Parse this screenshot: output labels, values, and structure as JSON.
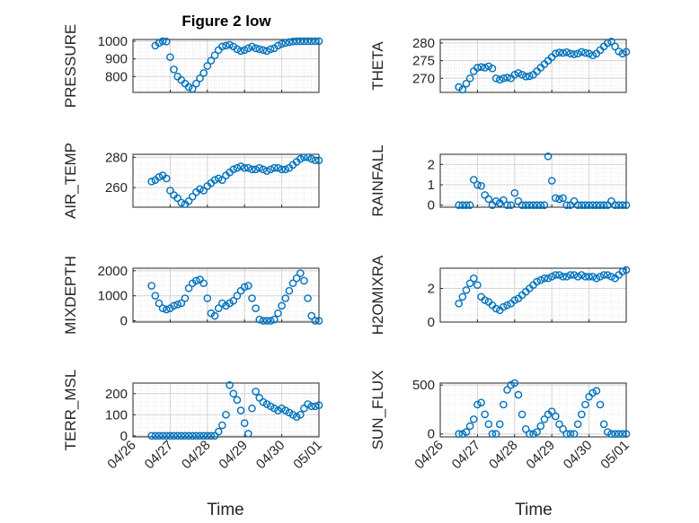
{
  "figure": {
    "title": "Figure 2 low",
    "xlabel": "Time"
  },
  "colors": {
    "marker": "#0072BD",
    "grid": "#DDDDDD",
    "axis": "#262626"
  },
  "chart_data": [
    {
      "type": "scatter",
      "ylabel": "PRESSURE",
      "ylim": [
        710,
        1010
      ],
      "yticks": [
        800,
        900,
        1000
      ],
      "xlim": [
        0,
        5
      ],
      "grid": true,
      "x": [
        0.6,
        0.7,
        0.8,
        0.9,
        1.0,
        1.1,
        1.2,
        1.3,
        1.4,
        1.5,
        1.6,
        1.7,
        1.8,
        1.9,
        2.0,
        2.1,
        2.2,
        2.3,
        2.4,
        2.5,
        2.6,
        2.7,
        2.8,
        2.9,
        3.0,
        3.1,
        3.2,
        3.3,
        3.4,
        3.5,
        3.6,
        3.7,
        3.8,
        3.9,
        4.0,
        4.1,
        4.2,
        4.3,
        4.4,
        4.5,
        4.6,
        4.7,
        4.8,
        4.9,
        5.0
      ],
      "y": [
        975,
        990,
        1000,
        998,
        910,
        840,
        800,
        780,
        760,
        740,
        730,
        760,
        790,
        820,
        860,
        890,
        920,
        950,
        970,
        975,
        980,
        970,
        955,
        945,
        950,
        960,
        970,
        960,
        955,
        950,
        945,
        955,
        960,
        975,
        985,
        990,
        995,
        998,
        1000,
        1000,
        1000,
        1000,
        1000,
        1000,
        1000
      ]
    },
    {
      "type": "scatter",
      "ylabel": "THETA",
      "ylim": [
        266,
        281
      ],
      "yticks": [
        270,
        275,
        280
      ],
      "xlim": [
        0,
        5
      ],
      "grid": true,
      "x": [
        0.5,
        0.6,
        0.7,
        0.8,
        0.9,
        1.0,
        1.1,
        1.2,
        1.3,
        1.4,
        1.5,
        1.6,
        1.7,
        1.8,
        1.9,
        2.0,
        2.1,
        2.2,
        2.3,
        2.4,
        2.5,
        2.6,
        2.7,
        2.8,
        2.9,
        3.0,
        3.1,
        3.2,
        3.3,
        3.4,
        3.5,
        3.6,
        3.7,
        3.8,
        3.9,
        4.0,
        4.1,
        4.2,
        4.3,
        4.4,
        4.5,
        4.6,
        4.7,
        4.8,
        4.9,
        5.0
      ],
      "y": [
        267.5,
        266.8,
        268.5,
        270,
        272,
        273,
        273.2,
        273,
        273.4,
        272.8,
        270,
        269.6,
        270,
        270.2,
        270,
        271,
        271.5,
        271,
        270.5,
        270.6,
        271,
        272,
        273,
        274,
        275,
        276,
        277,
        277.3,
        277.2,
        277.4,
        277,
        276.8,
        277,
        277.5,
        277.2,
        277,
        276.5,
        277,
        278,
        279,
        280,
        280.4,
        279,
        277.6,
        277,
        277.5
      ]
    },
    {
      "type": "scatter",
      "ylabel": "AIR_TEMP",
      "ylim": [
        247,
        282
      ],
      "yticks": [
        260,
        280
      ],
      "xlim": [
        0,
        5
      ],
      "grid": true,
      "x": [
        0.5,
        0.6,
        0.7,
        0.8,
        0.9,
        1.0,
        1.1,
        1.2,
        1.3,
        1.4,
        1.5,
        1.6,
        1.7,
        1.8,
        1.9,
        2.0,
        2.1,
        2.2,
        2.3,
        2.4,
        2.5,
        2.6,
        2.7,
        2.8,
        2.9,
        3.0,
        3.1,
        3.2,
        3.3,
        3.4,
        3.5,
        3.6,
        3.7,
        3.8,
        3.9,
        4.0,
        4.1,
        4.2,
        4.3,
        4.4,
        4.5,
        4.6,
        4.7,
        4.8,
        4.9,
        5.0
      ],
      "y": [
        264,
        265,
        267,
        268,
        266,
        258,
        255,
        253,
        250,
        249,
        251,
        254,
        257,
        259,
        258,
        261,
        263,
        265,
        266,
        265,
        268,
        270,
        272,
        273,
        274,
        273,
        273,
        272,
        272,
        273,
        272,
        271,
        272,
        273,
        273,
        272,
        272,
        273,
        275,
        277,
        279,
        280,
        280,
        279,
        278,
        278
      ]
    },
    {
      "type": "scatter",
      "ylabel": "RAINFALL",
      "ylim": [
        -0.1,
        2.5
      ],
      "yticks": [
        0,
        1,
        2
      ],
      "xlim": [
        0,
        5
      ],
      "grid": true,
      "x": [
        0.5,
        0.6,
        0.7,
        0.8,
        0.9,
        1.0,
        1.1,
        1.2,
        1.3,
        1.4,
        1.5,
        1.6,
        1.7,
        1.8,
        1.9,
        2.0,
        2.1,
        2.2,
        2.3,
        2.4,
        2.5,
        2.6,
        2.7,
        2.8,
        2.9,
        3.0,
        3.1,
        3.2,
        3.3,
        3.4,
        3.5,
        3.6,
        3.7,
        3.8,
        3.9,
        4.0,
        4.1,
        4.2,
        4.3,
        4.4,
        4.5,
        4.6,
        4.7,
        4.8,
        4.9,
        5.0
      ],
      "y": [
        0,
        0,
        0,
        0,
        1.25,
        1.0,
        0.95,
        0.5,
        0.3,
        0,
        0.2,
        0.1,
        0.25,
        0,
        0,
        0.6,
        0.2,
        0,
        0,
        0,
        0,
        0,
        0,
        0,
        2.4,
        1.2,
        0.35,
        0.3,
        0.35,
        0,
        0,
        0.2,
        0,
        0,
        0,
        0,
        0,
        0,
        0,
        0,
        0,
        0.2,
        0,
        0,
        0,
        0
      ]
    },
    {
      "type": "scatter",
      "ylabel": "MIXDEPTH",
      "ylim": [
        -50,
        2100
      ],
      "yticks": [
        0,
        1000,
        2000
      ],
      "xlim": [
        0,
        5
      ],
      "grid": true,
      "x": [
        0.5,
        0.6,
        0.7,
        0.8,
        0.9,
        1.0,
        1.1,
        1.2,
        1.3,
        1.4,
        1.5,
        1.6,
        1.7,
        1.8,
        1.9,
        2.0,
        2.1,
        2.2,
        2.3,
        2.4,
        2.5,
        2.6,
        2.7,
        2.8,
        2.9,
        3.0,
        3.1,
        3.2,
        3.3,
        3.4,
        3.5,
        3.6,
        3.7,
        3.8,
        3.9,
        4.0,
        4.1,
        4.2,
        4.3,
        4.4,
        4.5,
        4.6,
        4.7,
        4.8,
        4.9,
        5.0
      ],
      "y": [
        1400,
        1000,
        700,
        500,
        450,
        500,
        600,
        650,
        700,
        900,
        1300,
        1500,
        1600,
        1650,
        1500,
        900,
        300,
        200,
        500,
        700,
        600,
        700,
        800,
        1000,
        1200,
        1350,
        1400,
        900,
        500,
        50,
        0,
        0,
        0,
        50,
        300,
        600,
        900,
        1200,
        1500,
        1700,
        1900,
        1600,
        900,
        200,
        0,
        0
      ]
    },
    {
      "type": "scatter",
      "ylabel": "H2OMIXRA",
      "ylim": [
        0,
        3.2
      ],
      "yticks": [
        0,
        2
      ],
      "xlim": [
        0,
        5
      ],
      "grid": true,
      "x": [
        0.5,
        0.6,
        0.7,
        0.8,
        0.9,
        1.0,
        1.1,
        1.2,
        1.3,
        1.4,
        1.5,
        1.6,
        1.7,
        1.8,
        1.9,
        2.0,
        2.1,
        2.2,
        2.3,
        2.4,
        2.5,
        2.6,
        2.7,
        2.8,
        2.9,
        3.0,
        3.1,
        3.2,
        3.3,
        3.4,
        3.5,
        3.6,
        3.7,
        3.8,
        3.9,
        4.0,
        4.1,
        4.2,
        4.3,
        4.4,
        4.5,
        4.6,
        4.7,
        4.8,
        4.9,
        5.0
      ],
      "y": [
        1.1,
        1.5,
        1.9,
        2.3,
        2.6,
        2.2,
        1.5,
        1.3,
        1.2,
        1.0,
        0.8,
        0.7,
        0.9,
        1.0,
        1.1,
        1.3,
        1.4,
        1.6,
        1.8,
        2.0,
        2.2,
        2.4,
        2.5,
        2.6,
        2.6,
        2.7,
        2.8,
        2.8,
        2.7,
        2.7,
        2.8,
        2.8,
        2.7,
        2.8,
        2.7,
        2.7,
        2.7,
        2.6,
        2.7,
        2.8,
        2.8,
        2.7,
        2.6,
        2.8,
        3.0,
        3.1
      ]
    },
    {
      "type": "scatter",
      "ylabel": "TERR_MSL",
      "ylim": [
        -5,
        250
      ],
      "yticks": [
        0,
        100,
        200
      ],
      "xlim": [
        0,
        5
      ],
      "grid": true,
      "x": [
        0.5,
        0.6,
        0.7,
        0.8,
        0.9,
        1.0,
        1.1,
        1.2,
        1.3,
        1.4,
        1.5,
        1.6,
        1.7,
        1.8,
        1.9,
        2.0,
        2.1,
        2.2,
        2.3,
        2.4,
        2.5,
        2.6,
        2.7,
        2.8,
        2.9,
        3.0,
        3.1,
        3.2,
        3.3,
        3.4,
        3.5,
        3.6,
        3.7,
        3.8,
        3.9,
        4.0,
        4.1,
        4.2,
        4.3,
        4.4,
        4.5,
        4.6,
        4.7,
        4.8,
        4.9,
        5.0
      ],
      "y": [
        0,
        0,
        0,
        0,
        0,
        0,
        0,
        0,
        0,
        0,
        0,
        0,
        0,
        0,
        0,
        0,
        0,
        0,
        20,
        50,
        100,
        240,
        200,
        170,
        120,
        60,
        10,
        130,
        210,
        180,
        160,
        150,
        140,
        130,
        120,
        130,
        120,
        110,
        100,
        90,
        100,
        130,
        150,
        140,
        140,
        145
      ]
    },
    {
      "type": "scatter",
      "ylabel": "SUN_FLUX",
      "ylim": [
        -30,
        520
      ],
      "yticks": [
        0,
        500
      ],
      "xlim": [
        0,
        5
      ],
      "grid": true,
      "x": [
        0.5,
        0.6,
        0.7,
        0.8,
        0.9,
        1.0,
        1.1,
        1.2,
        1.3,
        1.4,
        1.5,
        1.6,
        1.7,
        1.8,
        1.9,
        2.0,
        2.1,
        2.2,
        2.3,
        2.4,
        2.5,
        2.6,
        2.7,
        2.8,
        2.9,
        3.0,
        3.1,
        3.2,
        3.3,
        3.4,
        3.5,
        3.6,
        3.7,
        3.8,
        3.9,
        4.0,
        4.1,
        4.2,
        4.3,
        4.4,
        4.5,
        4.6,
        4.7,
        4.8,
        4.9,
        5.0
      ],
      "y": [
        0,
        0,
        20,
        80,
        150,
        300,
        320,
        200,
        100,
        0,
        0,
        100,
        300,
        450,
        500,
        520,
        400,
        200,
        50,
        0,
        0,
        20,
        80,
        150,
        200,
        230,
        180,
        100,
        50,
        0,
        0,
        0,
        100,
        200,
        300,
        380,
        420,
        440,
        300,
        100,
        20,
        0,
        0,
        0,
        0,
        0
      ]
    }
  ],
  "xaxis": {
    "ticklabels": [
      "04/26",
      "04/27",
      "04/28",
      "04/29",
      "04/30",
      "05/01"
    ]
  }
}
